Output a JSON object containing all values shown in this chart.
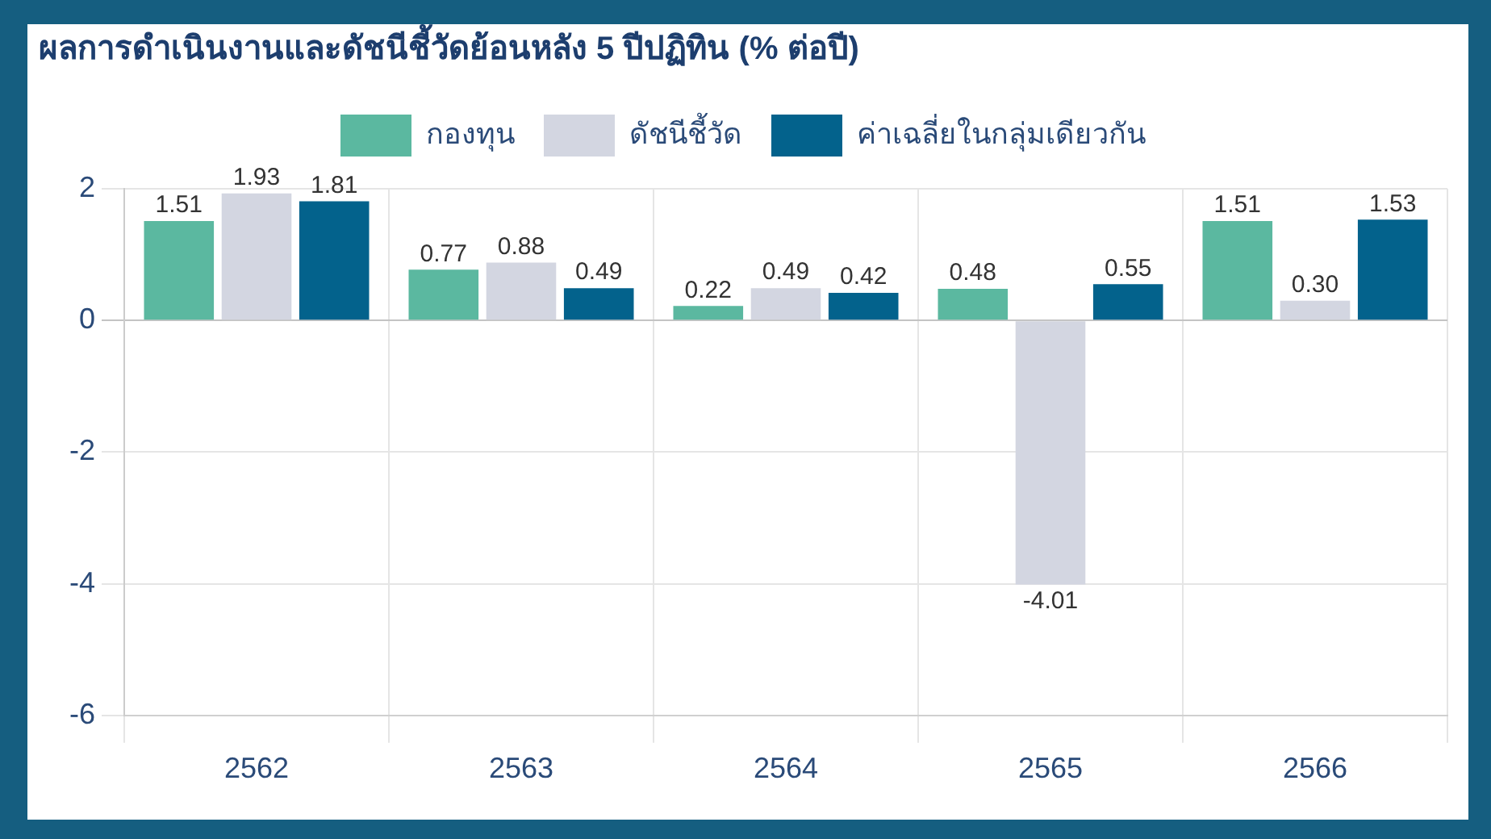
{
  "chart_data": {
    "type": "bar",
    "title": "ผลการดำเนินงานและดัชนีชี้วัดย้อนหลัง 5 ปีปฏิทิน (% ต่อปี)",
    "categories": [
      "2562",
      "2563",
      "2564",
      "2565",
      "2566"
    ],
    "series": [
      {
        "name": "กองทุน",
        "color": "#5bb8a0",
        "values": [
          1.51,
          0.77,
          0.22,
          0.48,
          1.51
        ],
        "value_labels": [
          "1.51",
          "0.77",
          "0.22",
          "0.48",
          "1.51"
        ]
      },
      {
        "name": "ดัชนีชี้วัด",
        "color": "#d3d6e1",
        "values": [
          1.93,
          0.88,
          0.49,
          -4.01,
          0.3
        ],
        "value_labels": [
          "1.93",
          "0.88",
          "0.49",
          "-4.01",
          "0.30"
        ]
      },
      {
        "name": "ค่าเฉลี่ยในกลุ่มเดียวกัน",
        "color": "#03628c",
        "values": [
          1.81,
          0.49,
          0.42,
          0.55,
          1.53
        ],
        "value_labels": [
          "1.81",
          "0.49",
          "0.42",
          "0.55",
          "1.53"
        ]
      }
    ],
    "ylim": [
      -6,
      2
    ],
    "yticks": [
      -6,
      -4,
      -2,
      0,
      2
    ],
    "grid": true,
    "legend": "top"
  }
}
